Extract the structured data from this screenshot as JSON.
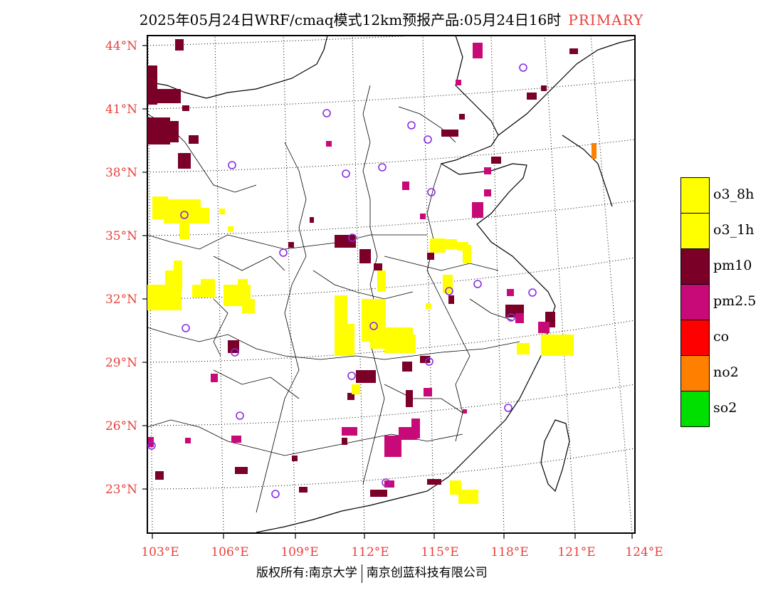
{
  "header": {
    "title": "2025年05月24日WRF/cmaq模式12km预报产品:05月24日16时",
    "pollutant_tag": "PRIMARY"
  },
  "axes": {
    "lat_labels": [
      "44°N",
      "41°N",
      "38°N",
      "35°N",
      "32°N",
      "29°N",
      "26°N",
      "23°N"
    ],
    "lon_labels": [
      "103°E",
      "106°E",
      "109°E",
      "112°E",
      "115°E",
      "118°E",
      "121°E",
      "124°E"
    ]
  },
  "legend": {
    "items": [
      {
        "label": "o3_8h",
        "color": "#ffff00"
      },
      {
        "label": "o3_1h",
        "color": "#ffff00"
      },
      {
        "label": "pm10",
        "color": "#7a0028"
      },
      {
        "label": "pm2.5",
        "color": "#c80a78"
      },
      {
        "label": "co",
        "color": "#ff0000"
      },
      {
        "label": "no2",
        "color": "#ff7f00"
      },
      {
        "label": "so2",
        "color": "#00e000"
      }
    ]
  },
  "footer": {
    "copyright": "版权所有:南京大学",
    "company": "南京创蓝科技有限公司"
  },
  "colors": {
    "axis_label": "#e8413a",
    "station_marker": "#8a2be2",
    "coastline": "#000000"
  }
}
